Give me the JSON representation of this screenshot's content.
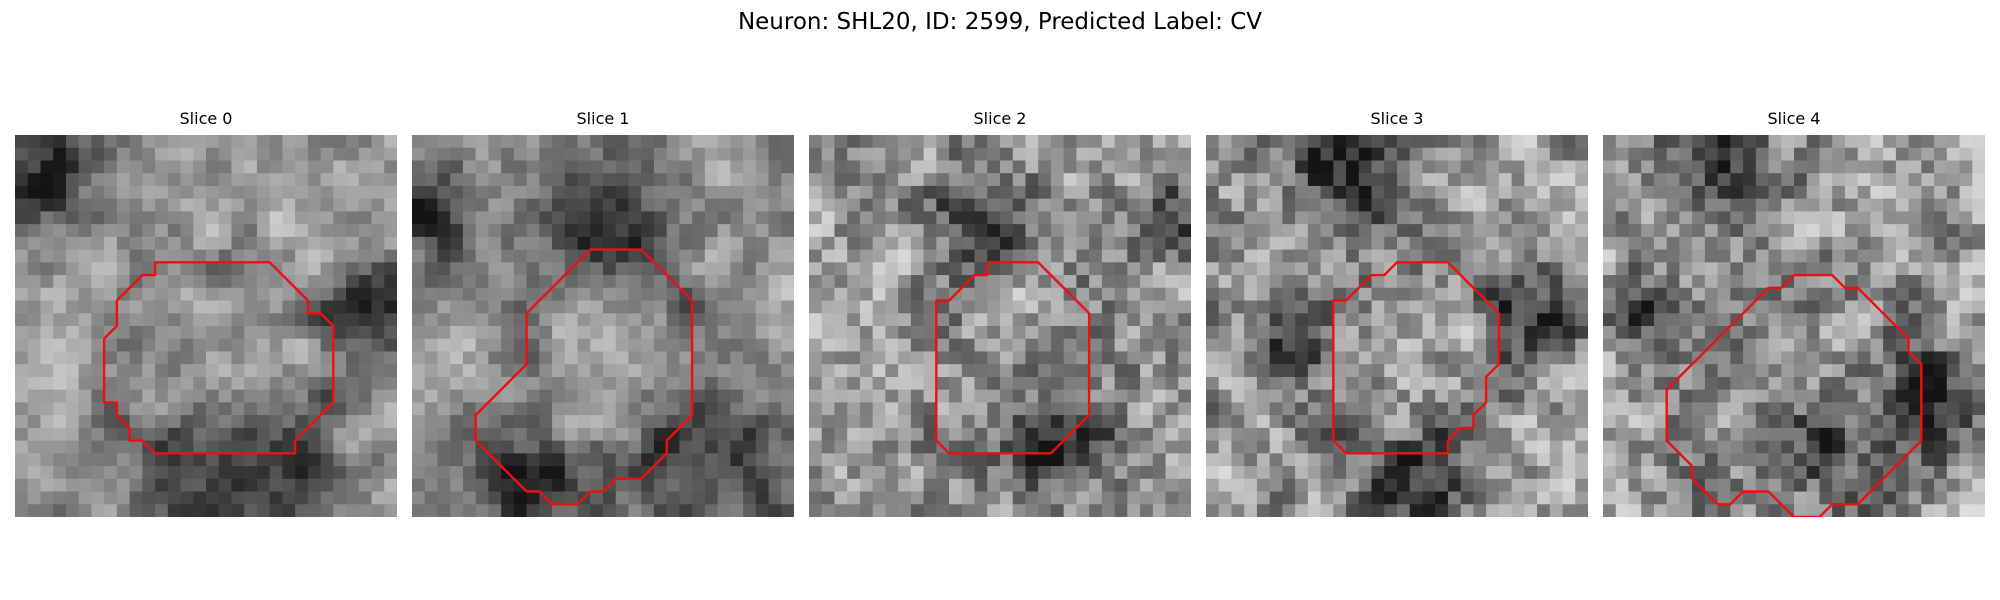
{
  "figure": {
    "title": "Neuron: SHL20, ID: 2599, Predicted Label: CV"
  },
  "slices": [
    {
      "title": "Slice 0",
      "seed": 11,
      "smooth": 2,
      "dark_blobs": [
        [
          0.05,
          0.08,
          0.12
        ],
        [
          0.55,
          0.92,
          0.18
        ],
        [
          0.96,
          0.45,
          0.1
        ]
      ],
      "contour": [
        [
          17,
          10
        ],
        [
          20,
          10
        ],
        [
          23,
          13
        ],
        [
          23,
          14
        ],
        [
          24,
          14
        ],
        [
          25,
          15
        ],
        [
          25,
          21
        ],
        [
          23,
          23
        ],
        [
          22,
          24
        ],
        [
          22,
          25
        ],
        [
          21,
          25
        ],
        [
          11,
          25
        ],
        [
          10,
          24
        ],
        [
          9,
          24
        ],
        [
          9,
          23
        ],
        [
          8,
          22
        ],
        [
          8,
          21
        ],
        [
          7,
          21
        ],
        [
          7,
          16
        ],
        [
          8,
          15
        ],
        [
          8,
          13
        ],
        [
          9,
          12
        ],
        [
          10,
          11
        ],
        [
          11,
          11
        ],
        [
          11,
          10
        ]
      ]
    },
    {
      "title": "Slice 1",
      "seed": 23,
      "smooth": 2,
      "dark_blobs": [
        [
          0.48,
          0.17,
          0.12
        ],
        [
          0.05,
          0.2,
          0.1
        ],
        [
          0.8,
          0.88,
          0.16
        ],
        [
          0.3,
          0.9,
          0.1
        ]
      ],
      "contour": [
        [
          15,
          9
        ],
        [
          18,
          9
        ],
        [
          21,
          12
        ],
        [
          22,
          13
        ],
        [
          22,
          22
        ],
        [
          21,
          23
        ],
        [
          20,
          24
        ],
        [
          20,
          25
        ],
        [
          19,
          26
        ],
        [
          18,
          27
        ],
        [
          16,
          27
        ],
        [
          15,
          28
        ],
        [
          14,
          28
        ],
        [
          13,
          29
        ],
        [
          11,
          29
        ],
        [
          10,
          28
        ],
        [
          9,
          28
        ],
        [
          8,
          27
        ],
        [
          7,
          26
        ],
        [
          6,
          25
        ],
        [
          5,
          24
        ],
        [
          5,
          22
        ],
        [
          6,
          21
        ],
        [
          7,
          20
        ],
        [
          8,
          19
        ],
        [
          9,
          18
        ],
        [
          9,
          14
        ],
        [
          10,
          13
        ],
        [
          11,
          12
        ],
        [
          12,
          11
        ],
        [
          13,
          10
        ],
        [
          14,
          9
        ]
      ]
    },
    {
      "title": "Slice 2",
      "seed": 37,
      "smooth": 1,
      "dark_blobs": [
        [
          0.42,
          0.18,
          0.09
        ],
        [
          0.62,
          0.8,
          0.12
        ],
        [
          0.95,
          0.2,
          0.08
        ]
      ],
      "contour": [
        [
          14,
          10
        ],
        [
          18,
          10
        ],
        [
          19,
          11
        ],
        [
          21,
          13
        ],
        [
          22,
          14
        ],
        [
          22,
          22
        ],
        [
          20,
          24
        ],
        [
          19,
          25
        ],
        [
          11,
          25
        ],
        [
          10,
          24
        ],
        [
          10,
          13
        ],
        [
          11,
          13
        ],
        [
          12,
          12
        ],
        [
          13,
          11
        ],
        [
          14,
          11
        ]
      ]
    },
    {
      "title": "Slice 3",
      "seed": 49,
      "smooth": 1,
      "dark_blobs": [
        [
          0.35,
          0.1,
          0.12
        ],
        [
          0.2,
          0.55,
          0.08
        ],
        [
          0.85,
          0.45,
          0.09
        ],
        [
          0.55,
          0.9,
          0.1
        ]
      ],
      "contour": [
        [
          15,
          10
        ],
        [
          19,
          10
        ],
        [
          20,
          11
        ],
        [
          21,
          12
        ],
        [
          22,
          13
        ],
        [
          23,
          14
        ],
        [
          23,
          18
        ],
        [
          22,
          19
        ],
        [
          22,
          21
        ],
        [
          21,
          22
        ],
        [
          21,
          23
        ],
        [
          20,
          23
        ],
        [
          19,
          24
        ],
        [
          19,
          25
        ],
        [
          11,
          25
        ],
        [
          10,
          24
        ],
        [
          10,
          13
        ],
        [
          11,
          13
        ],
        [
          12,
          12
        ],
        [
          13,
          11
        ],
        [
          14,
          11
        ]
      ]
    },
    {
      "title": "Slice 4",
      "seed": 61,
      "smooth": 1,
      "dark_blobs": [
        [
          0.3,
          0.05,
          0.12
        ],
        [
          0.08,
          0.45,
          0.07
        ],
        [
          0.85,
          0.7,
          0.1
        ],
        [
          0.55,
          0.78,
          0.08
        ]
      ],
      "contour": [
        [
          16,
          11
        ],
        [
          18,
          11
        ],
        [
          19,
          12
        ],
        [
          20,
          12
        ],
        [
          21,
          13
        ],
        [
          22,
          14
        ],
        [
          23,
          15
        ],
        [
          24,
          16
        ],
        [
          24,
          17
        ],
        [
          25,
          18
        ],
        [
          25,
          24
        ],
        [
          24,
          25
        ],
        [
          23,
          26
        ],
        [
          22,
          27
        ],
        [
          21,
          28
        ],
        [
          20,
          29
        ],
        [
          18,
          29
        ],
        [
          17,
          30
        ],
        [
          15,
          30
        ],
        [
          14,
          29
        ],
        [
          13,
          28
        ],
        [
          11,
          28
        ],
        [
          10,
          29
        ],
        [
          9,
          29
        ],
        [
          8,
          28
        ],
        [
          7,
          27
        ],
        [
          7,
          26
        ],
        [
          6,
          25
        ],
        [
          5,
          24
        ],
        [
          5,
          20
        ],
        [
          6,
          19
        ],
        [
          7,
          18
        ],
        [
          8,
          17
        ],
        [
          9,
          16
        ],
        [
          10,
          15
        ],
        [
          11,
          14
        ],
        [
          12,
          13
        ],
        [
          13,
          12
        ],
        [
          14,
          12
        ],
        [
          15,
          11
        ]
      ]
    }
  ],
  "style": {
    "contour_color": "#ee1010"
  }
}
